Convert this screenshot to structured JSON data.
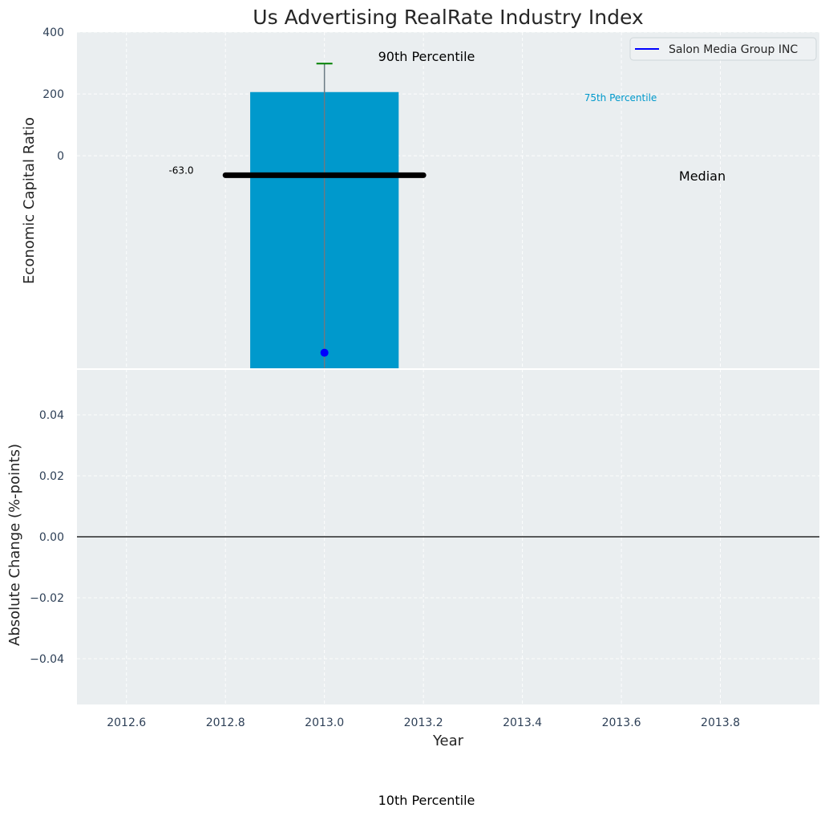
{
  "chart_data": {
    "type": "bar",
    "title": "Us Advertising RealRate Industry Index",
    "xlabel": "Year",
    "colors": {
      "bar": "#0099cc",
      "median": "#000000",
      "company": "#0000ff",
      "p90_cap": "#008000",
      "p75_label": "#0099cc",
      "panel_bg": "#eaeef0"
    },
    "top_panel": {
      "ylabel": "Economic Capital Ratio",
      "ylim": [
        -690,
        400
      ],
      "yticks": [
        "400",
        "200",
        "0"
      ],
      "bar": {
        "x": 2013.0,
        "width": 0.3,
        "bottom": -690,
        "top": 206
      },
      "median_value": -63.0,
      "median_label": "-63.0",
      "whisker": {
        "x": 2013.0,
        "low": -690,
        "high": 298
      },
      "company": {
        "x": 2013.0,
        "y": -637
      },
      "legend": [
        "Salon Media Group INC"
      ],
      "annotations": {
        "p90": "90th Percentile",
        "p75": "75th Percentile",
        "median": "Median",
        "p10": "10th Percentile"
      }
    },
    "bottom_panel": {
      "ylabel": "Absolute Change (%-points)",
      "ylim": [
        -0.055,
        0.055
      ],
      "yticks": [
        "0.04",
        "0.02",
        "0.00",
        "−0.02",
        "−0.04"
      ],
      "series": [
        {
          "x": [
            2013.0
          ],
          "y": [
            0.0
          ]
        }
      ]
    },
    "xlim": [
      2012.5,
      2014.0
    ],
    "xticks": [
      "2012.6",
      "2012.8",
      "2013.0",
      "2013.2",
      "2013.4",
      "2013.6",
      "2013.8"
    ],
    "grid": true,
    "legend_position": "top-right"
  }
}
